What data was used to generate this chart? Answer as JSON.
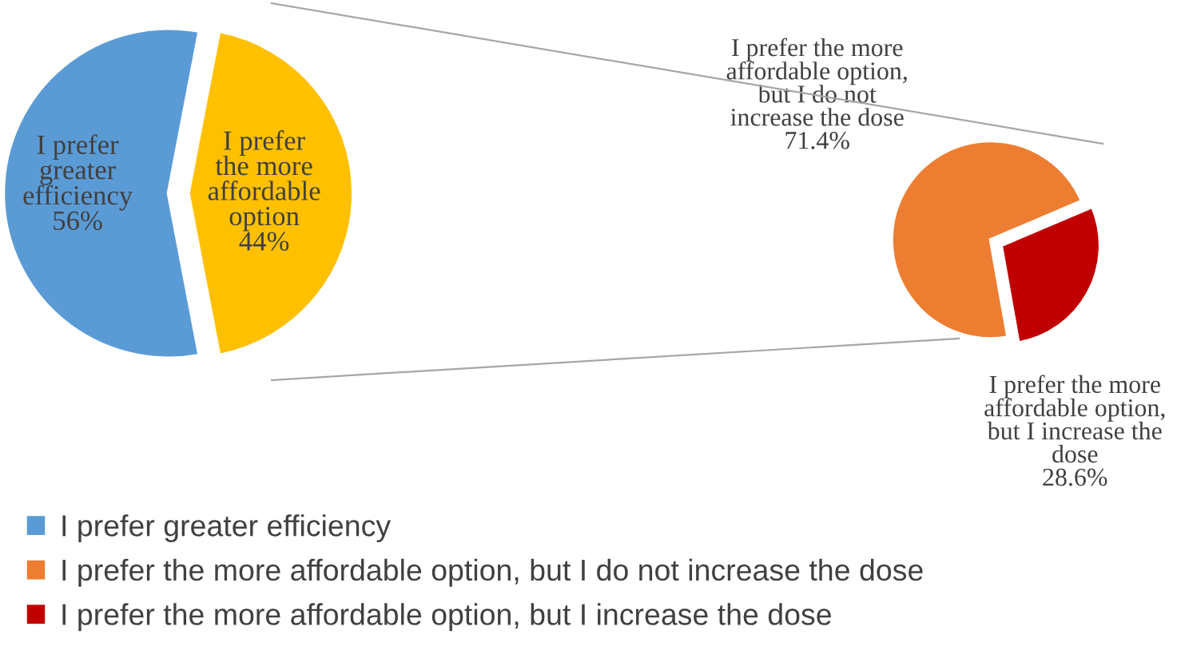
{
  "chart_data": [
    {
      "type": "pie",
      "categories": [
        "I prefer greater efficiency",
        "I prefer the more affordable option"
      ],
      "values": [
        56,
        44
      ],
      "colors": [
        "#5b9bd5",
        "#ffc000"
      ],
      "value_labels": [
        "56%",
        "44%"
      ],
      "legend": "bottom"
    },
    {
      "type": "pie",
      "categories": [
        "I prefer the more affordable option, but I do not increase the dose",
        "I prefer the more affordable option, but I increase the dose"
      ],
      "values": [
        71.4,
        28.6
      ],
      "colors": [
        "#ed7d31",
        "#c00000"
      ],
      "value_labels": [
        "71.4%",
        "28.6%"
      ],
      "legend": "bottom"
    }
  ]
}
